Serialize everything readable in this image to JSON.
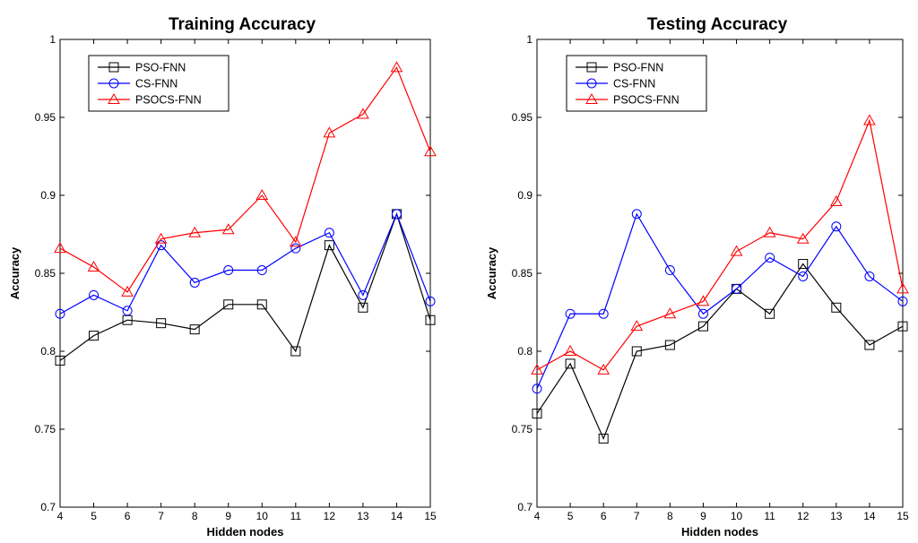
{
  "chart_data": [
    {
      "type": "line",
      "title": "Training Accuracy",
      "xlabel": "Hidden nodes",
      "ylabel": "Accuracy",
      "xlim": [
        4,
        15
      ],
      "ylim": [
        0.7,
        1
      ],
      "x": [
        4,
        5,
        6,
        7,
        8,
        9,
        10,
        11,
        12,
        13,
        14,
        15
      ],
      "yticks": [
        "0.7",
        "0.75",
        "0.8",
        "0.85",
        "0.9",
        "0.95",
        "1"
      ],
      "legend_position": "top-left",
      "series": [
        {
          "name": "PSO-FNN",
          "color": "#000000",
          "marker": "square",
          "values": [
            0.794,
            0.81,
            0.82,
            0.818,
            0.814,
            0.83,
            0.83,
            0.8,
            0.868,
            0.828,
            0.888,
            0.82
          ]
        },
        {
          "name": "CS-FNN",
          "color": "#0000ff",
          "marker": "circle",
          "values": [
            0.824,
            0.836,
            0.826,
            0.868,
            0.844,
            0.852,
            0.852,
            0.866,
            0.876,
            0.836,
            0.888,
            0.832
          ]
        },
        {
          "name": "PSOCS-FNN",
          "color": "#ff0000",
          "marker": "triangle",
          "values": [
            0.866,
            0.854,
            0.838,
            0.872,
            0.876,
            0.878,
            0.9,
            0.87,
            0.94,
            0.952,
            0.982,
            0.928
          ]
        }
      ]
    },
    {
      "type": "line",
      "title": "Testing Accuracy",
      "xlabel": "Hidden nodes",
      "ylabel": "Accuracy",
      "xlim": [
        4,
        15
      ],
      "ylim": [
        0.7,
        1
      ],
      "x": [
        4,
        5,
        6,
        7,
        8,
        9,
        10,
        11,
        12,
        13,
        14,
        15
      ],
      "yticks": [
        "0.7",
        "0.75",
        "0.8",
        "0.85",
        "0.9",
        "0.95",
        "1"
      ],
      "legend_position": "top-left",
      "series": [
        {
          "name": "PSO-FNN",
          "color": "#000000",
          "marker": "square",
          "values": [
            0.76,
            0.792,
            0.744,
            0.8,
            0.804,
            0.816,
            0.84,
            0.824,
            0.856,
            0.828,
            0.804,
            0.816
          ]
        },
        {
          "name": "CS-FNN",
          "color": "#0000ff",
          "marker": "circle",
          "values": [
            0.776,
            0.824,
            0.824,
            0.888,
            0.852,
            0.824,
            0.84,
            0.86,
            0.848,
            0.88,
            0.848,
            0.832
          ]
        },
        {
          "name": "PSOCS-FNN",
          "color": "#ff0000",
          "marker": "triangle",
          "values": [
            0.788,
            0.8,
            0.788,
            0.816,
            0.824,
            0.832,
            0.864,
            0.876,
            0.872,
            0.896,
            0.948,
            0.84
          ]
        }
      ]
    }
  ]
}
